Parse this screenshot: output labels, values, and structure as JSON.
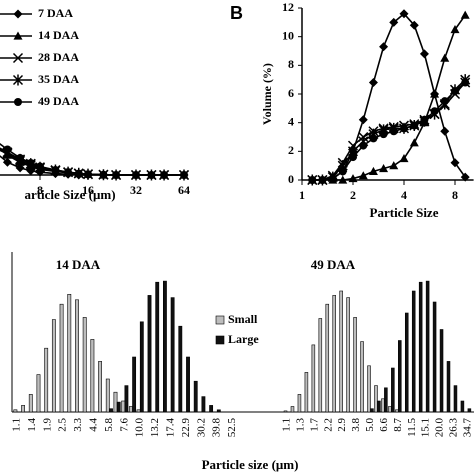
{
  "chart_data": [
    {
      "type": "line",
      "xscale": "log",
      "xlabel": "article Size (μm)",
      "x": [
        4,
        5,
        6,
        7,
        8,
        10,
        12,
        14,
        16,
        20,
        24,
        32,
        40,
        48,
        64
      ],
      "xlim": [
        4,
        64
      ],
      "ylim": [
        0,
        12
      ],
      "xticks": [
        8,
        16,
        32,
        64
      ],
      "legend": "upper left",
      "series": [
        {
          "name": "7 DAA",
          "color": "#000",
          "marker": "diamond",
          "values": [
            1.8,
            0.9,
            0.5,
            0.3,
            0.2,
            0.1,
            0.05,
            0,
            0,
            0,
            0,
            0,
            0,
            0,
            0
          ]
        },
        {
          "name": "14 DAA",
          "color": "#000",
          "marker": "triangle",
          "values": [
            2.3,
            1.4,
            0.9,
            0.6,
            0.4,
            0.25,
            0.15,
            0.1,
            0.05,
            0,
            0,
            0,
            0,
            0,
            0
          ]
        },
        {
          "name": "28 DAA",
          "color": "#000",
          "marker": "x",
          "values": [
            2.0,
            1.5,
            1.0,
            0.7,
            0.5,
            0.3,
            0.2,
            0.1,
            0.05,
            0.02,
            0,
            0,
            0,
            0,
            0
          ]
        },
        {
          "name": "35 DAA",
          "color": "#000",
          "marker": "star",
          "values": [
            2.2,
            1.6,
            1.1,
            0.8,
            0.55,
            0.35,
            0.2,
            0.12,
            0.06,
            0.02,
            0,
            0,
            0,
            0,
            0
          ]
        },
        {
          "name": "49 DAA",
          "color": "#000",
          "marker": "circle",
          "values": [
            2.6,
            1.8,
            1.2,
            0.85,
            0.6,
            0.35,
            0.2,
            0.1,
            0.05,
            0.02,
            0,
            0,
            0,
            0,
            0
          ]
        }
      ]
    },
    {
      "type": "line",
      "xscale": "log",
      "panel_label": "B",
      "ylabel": "Volume (%)",
      "xlabel": "Particle Size",
      "x": [
        1.15,
        1.32,
        1.52,
        1.74,
        2,
        2.3,
        2.64,
        3.03,
        3.48,
        4,
        4.6,
        5.28,
        6.06,
        6.96,
        8,
        9.19
      ],
      "xlim": [
        1,
        10.3
      ],
      "ylim": [
        0,
        12
      ],
      "xticks": [
        1,
        2,
        4,
        8
      ],
      "yticks": [
        0,
        2,
        4,
        6,
        8,
        10,
        12
      ],
      "series": [
        {
          "color": "#000",
          "marker": "diamond",
          "values": [
            0,
            0,
            0.1,
            0.6,
            2,
            4.2,
            6.8,
            9.3,
            11,
            11.6,
            10.8,
            8.8,
            6,
            3.4,
            1.2,
            0.2
          ]
        },
        {
          "color": "#000",
          "marker": "triangle",
          "values": [
            0,
            0,
            0,
            0,
            0.1,
            0.3,
            0.6,
            0.8,
            1,
            1.5,
            2.6,
            4,
            6,
            8.5,
            10.5,
            11.5
          ]
        },
        {
          "color": "#000",
          "marker": "x",
          "values": [
            0,
            0,
            0.3,
            1.2,
            2.4,
            3,
            3.4,
            3.6,
            3.7,
            3.8,
            3.9,
            4.2,
            4.6,
            5.2,
            6,
            6.8
          ]
        },
        {
          "color": "#000",
          "marker": "star",
          "values": [
            0,
            0,
            0.2,
            1,
            2,
            2.7,
            3.2,
            3.5,
            3.6,
            3.6,
            3.8,
            4.1,
            4.6,
            5.3,
            6.3,
            7
          ]
        },
        {
          "color": "#000",
          "marker": "circle",
          "values": [
            0,
            0,
            0.1,
            0.6,
            1.6,
            2.4,
            2.9,
            3.2,
            3.4,
            3.6,
            3.8,
            4.2,
            4.8,
            5.5,
            6.2,
            6.8
          ]
        }
      ]
    },
    {
      "type": "bar",
      "title": "14 DAA",
      "xlabel": "Particle size (μm)",
      "ylim": [
        0,
        14
      ],
      "legend": "center right",
      "categories": [
        "1.1",
        null,
        "1.4",
        null,
        "1.9",
        null,
        "2.5",
        null,
        "3.3",
        null,
        "4.4",
        null,
        "5.8",
        null,
        "7.6",
        null,
        "10.0",
        null,
        "13.2",
        null,
        "17.4",
        null,
        "22.9",
        null,
        "30.2",
        null,
        "39.8",
        null,
        "52.5"
      ],
      "series": [
        {
          "name": "Small",
          "color": "#bdbdbd",
          "values": [
            0.2,
            0.6,
            1.6,
            3.4,
            5.8,
            8.4,
            9.8,
            10.7,
            10.2,
            8.6,
            6.6,
            4.6,
            3,
            1.8,
            1,
            0.5,
            0.2,
            null,
            null,
            null,
            null,
            null,
            null,
            null,
            null,
            null,
            null,
            null,
            null
          ]
        },
        {
          "name": "Large",
          "color": "#111111",
          "values": [
            null,
            null,
            null,
            null,
            null,
            null,
            null,
            null,
            null,
            null,
            null,
            null,
            0.3,
            0.9,
            2.4,
            5,
            8.2,
            10.6,
            11.8,
            11.9,
            10.4,
            7.8,
            5,
            2.8,
            1.4,
            0.6,
            0.2,
            null,
            null
          ]
        }
      ]
    },
    {
      "type": "bar",
      "title": "49 DAA",
      "ylim": [
        0,
        14
      ],
      "categories": [
        "1.1",
        null,
        "1.3",
        null,
        "1.7",
        null,
        "2.2",
        null,
        "2.9",
        null,
        "3.8",
        null,
        "5.0",
        null,
        "6.6",
        null,
        "8.7",
        null,
        "11.5",
        null,
        "15.1",
        null,
        "20.0",
        null,
        "26.3",
        null,
        "34.7"
      ],
      "series": [
        {
          "color": "#bdbdbd",
          "values": [
            0.1,
            0.5,
            1.6,
            3.6,
            6.1,
            8.5,
            9.8,
            10.6,
            11,
            10.4,
            8.6,
            6.4,
            4.2,
            2.4,
            1.2,
            0.5,
            0.2,
            null,
            null,
            null,
            null,
            null,
            null,
            null,
            null,
            null,
            null
          ]
        },
        {
          "color": "#111111",
          "values": [
            null,
            null,
            null,
            null,
            null,
            null,
            null,
            null,
            null,
            null,
            null,
            null,
            0.3,
            1,
            2.2,
            4,
            6.5,
            9,
            11,
            11.8,
            11.9,
            10,
            7.5,
            4.6,
            2.4,
            1,
            0.3
          ]
        }
      ]
    }
  ]
}
